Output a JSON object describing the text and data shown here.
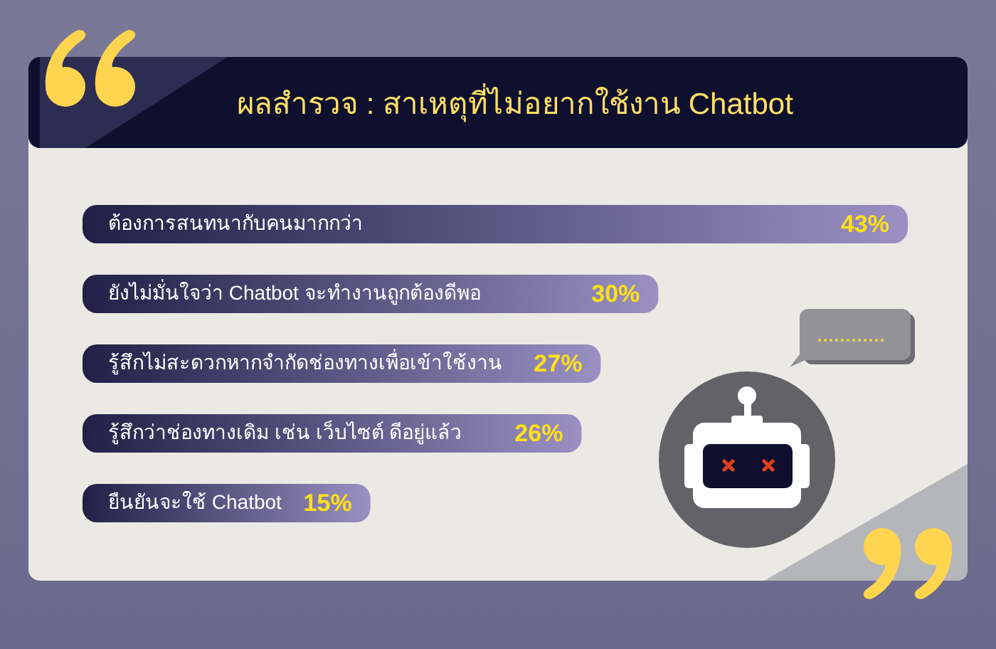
{
  "chart_data": {
    "type": "bar",
    "orientation": "horizontal",
    "title": "ผลสำรวจ : สาเหตุที่ไม่อยากใช้งาน Chatbot",
    "categories": [
      "ต้องการสนทนากับคนมากกว่า",
      "ยังไม่มั่นใจว่า Chatbot จะทำงานถูกต้องดีพอ",
      "รู้สึกไม่สะดวกหากจำกัดช่องทางเพื่อเข้าใช้งาน",
      "รู้สึกว่าช่องทางเดิม เช่น เว็บไซต์ ดีอยู่แล้ว",
      "ยืนยันจะใช้ Chatbot"
    ],
    "values": [
      43,
      30,
      27,
      26,
      15
    ],
    "value_labels": [
      "43%",
      "30%",
      "27%",
      "26%",
      "15%"
    ],
    "color": "#5b5683",
    "tick_labels": "y"
  }
}
